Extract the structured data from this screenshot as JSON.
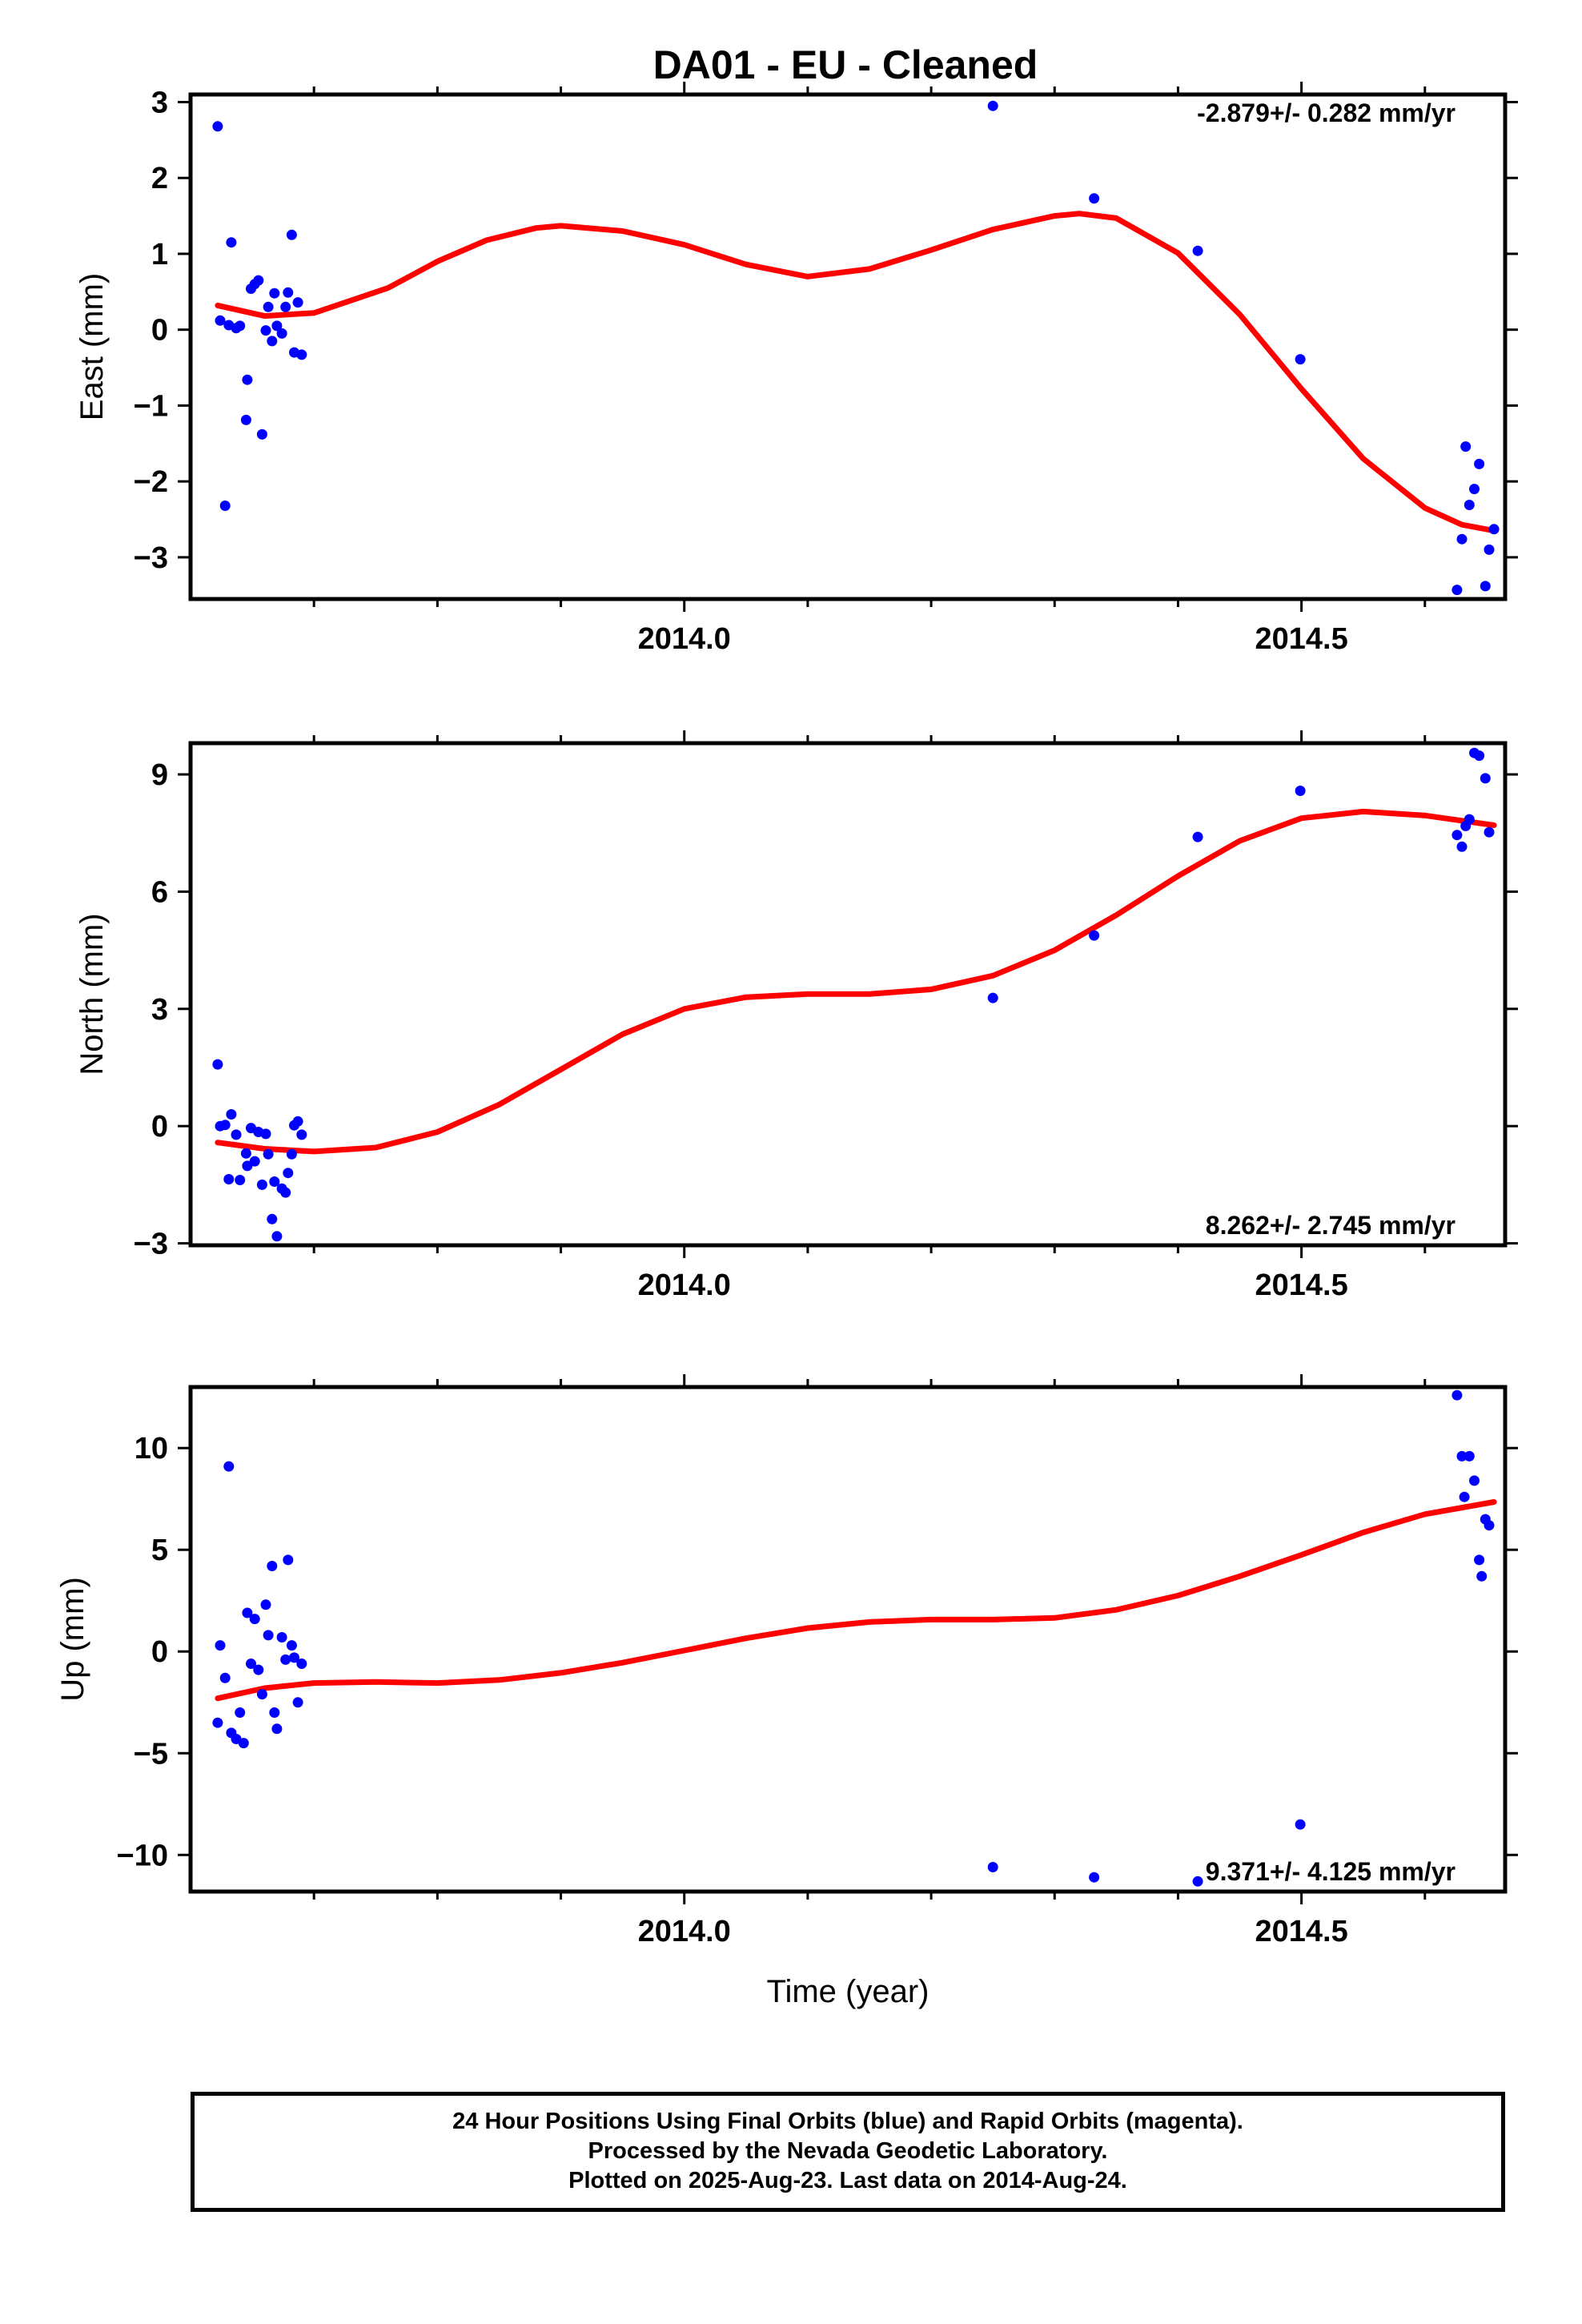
{
  "title": "DA01  - EU - Cleaned",
  "chart_data": [
    {
      "type": "scatter",
      "ylabel": "East (mm)",
      "xlabel": "",
      "xlim": [
        2013.6,
        2014.665
      ],
      "ylim": [
        -3.55,
        3.1
      ],
      "xticks": [
        2014.0,
        2014.5
      ],
      "xtick_labels": [
        "2014.0",
        "2014.5"
      ],
      "yticks": [
        -3,
        -2,
        -1,
        0,
        1,
        2,
        3
      ],
      "ytick_labels": [
        "−3",
        "−2",
        "−1",
        "0",
        "1",
        "2",
        "3"
      ],
      "rate_label": "-2.879+/- 0.282 mm/yr",
      "rate_position": "top-right",
      "series": [
        {
          "color": "#0000ff",
          "points": [
            [
              2013.622,
              2.68
            ],
            [
              2013.624,
              0.12
            ],
            [
              2013.628,
              -2.32
            ],
            [
              2013.631,
              0.06
            ],
            [
              2013.633,
              1.15
            ],
            [
              2013.637,
              0.02
            ],
            [
              2013.64,
              0.05
            ],
            [
              2013.645,
              -1.19
            ],
            [
              2013.646,
              -0.66
            ],
            [
              2013.649,
              0.54
            ],
            [
              2013.652,
              0.6
            ],
            [
              2013.655,
              0.65
            ],
            [
              2013.658,
              -1.38
            ],
            [
              2013.661,
              -0.01
            ],
            [
              2013.663,
              0.3
            ],
            [
              2013.666,
              -0.15
            ],
            [
              2013.668,
              0.48
            ],
            [
              2013.67,
              0.05
            ],
            [
              2013.674,
              -0.05
            ],
            [
              2013.677,
              0.3
            ],
            [
              2013.679,
              0.49
            ],
            [
              2013.682,
              1.25
            ],
            [
              2013.684,
              -0.3
            ],
            [
              2013.687,
              0.36
            ],
            [
              2013.69,
              -0.33
            ],
            [
              2014.25,
              2.95
            ],
            [
              2014.332,
              1.73
            ],
            [
              2014.416,
              1.04
            ],
            [
              2014.499,
              -0.39
            ],
            [
              2014.626,
              -3.43
            ],
            [
              2014.63,
              -2.76
            ],
            [
              2014.633,
              -1.54
            ],
            [
              2014.636,
              -2.31
            ],
            [
              2014.64,
              -2.1
            ],
            [
              2014.644,
              -1.77
            ],
            [
              2014.649,
              -3.38
            ],
            [
              2014.652,
              -2.9
            ],
            [
              2014.656,
              -2.63
            ]
          ]
        },
        {
          "color": "#ff0000",
          "points": [
            [
              2013.622,
              0.32
            ],
            [
              2013.66,
              0.18
            ],
            [
              2013.7,
              0.22
            ],
            [
              2013.76,
              0.55
            ],
            [
              2013.8,
              0.9
            ],
            [
              2013.84,
              1.18
            ],
            [
              2013.88,
              1.34
            ],
            [
              2013.9,
              1.37
            ],
            [
              2013.95,
              1.3
            ],
            [
              2014.0,
              1.12
            ],
            [
              2014.05,
              0.86
            ],
            [
              2014.1,
              0.7
            ],
            [
              2014.15,
              0.8
            ],
            [
              2014.2,
              1.05
            ],
            [
              2014.25,
              1.32
            ],
            [
              2014.3,
              1.5
            ],
            [
              2014.32,
              1.53
            ],
            [
              2014.35,
              1.47
            ],
            [
              2014.4,
              1.01
            ],
            [
              2014.45,
              0.2
            ],
            [
              2014.5,
              -0.78
            ],
            [
              2014.55,
              -1.7
            ],
            [
              2014.6,
              -2.35
            ],
            [
              2014.63,
              -2.57
            ],
            [
              2014.656,
              -2.65
            ]
          ]
        }
      ]
    },
    {
      "type": "scatter",
      "ylabel": "North (mm)",
      "xlabel": "",
      "xlim": [
        2013.6,
        2014.665
      ],
      "ylim": [
        -3.05,
        9.8
      ],
      "xticks": [
        2014.0,
        2014.5
      ],
      "xtick_labels": [
        "2014.0",
        "2014.5"
      ],
      "yticks": [
        -3,
        0,
        3,
        6,
        9
      ],
      "ytick_labels": [
        "−3",
        "0",
        "3",
        "6",
        "9"
      ],
      "rate_label": "8.262+/- 2.745 mm/yr",
      "rate_position": "bottom-right",
      "series": [
        {
          "color": "#0000ff",
          "points": [
            [
              2013.622,
              1.58
            ],
            [
              2013.624,
              0.0
            ],
            [
              2013.628,
              0.03
            ],
            [
              2013.631,
              -1.36
            ],
            [
              2013.633,
              0.3
            ],
            [
              2013.637,
              -0.22
            ],
            [
              2013.64,
              -1.38
            ],
            [
              2013.645,
              -0.7
            ],
            [
              2013.646,
              -1.02
            ],
            [
              2013.649,
              -0.05
            ],
            [
              2013.652,
              -0.9
            ],
            [
              2013.655,
              -0.15
            ],
            [
              2013.658,
              -1.5
            ],
            [
              2013.661,
              -0.2
            ],
            [
              2013.663,
              -0.72
            ],
            [
              2013.666,
              -2.38
            ],
            [
              2013.668,
              -1.42
            ],
            [
              2013.67,
              -2.82
            ],
            [
              2013.674,
              -1.6
            ],
            [
              2013.677,
              -1.7
            ],
            [
              2013.679,
              -1.2
            ],
            [
              2013.682,
              -0.72
            ],
            [
              2013.684,
              0.02
            ],
            [
              2013.687,
              0.12
            ],
            [
              2013.69,
              -0.22
            ],
            [
              2014.25,
              3.28
            ],
            [
              2014.332,
              4.88
            ],
            [
              2014.416,
              7.4
            ],
            [
              2014.499,
              8.58
            ],
            [
              2014.626,
              7.45
            ],
            [
              2014.63,
              7.15
            ],
            [
              2014.633,
              7.68
            ],
            [
              2014.636,
              7.85
            ],
            [
              2014.64,
              9.55
            ],
            [
              2014.644,
              9.48
            ],
            [
              2014.649,
              8.9
            ],
            [
              2014.652,
              7.52
            ]
          ]
        },
        {
          "color": "#ff0000",
          "points": [
            [
              2013.622,
              -0.42
            ],
            [
              2013.66,
              -0.58
            ],
            [
              2013.7,
              -0.65
            ],
            [
              2013.75,
              -0.55
            ],
            [
              2013.8,
              -0.15
            ],
            [
              2013.85,
              0.55
            ],
            [
              2013.9,
              1.45
            ],
            [
              2013.95,
              2.35
            ],
            [
              2014.0,
              3.0
            ],
            [
              2014.05,
              3.3
            ],
            [
              2014.1,
              3.38
            ],
            [
              2014.15,
              3.38
            ],
            [
              2014.2,
              3.5
            ],
            [
              2014.25,
              3.85
            ],
            [
              2014.3,
              4.5
            ],
            [
              2014.35,
              5.4
            ],
            [
              2014.4,
              6.4
            ],
            [
              2014.45,
              7.3
            ],
            [
              2014.5,
              7.88
            ],
            [
              2014.55,
              8.05
            ],
            [
              2014.6,
              7.95
            ],
            [
              2014.656,
              7.7
            ]
          ]
        }
      ]
    },
    {
      "type": "scatter",
      "ylabel": "Up (mm)",
      "xlabel": "Time (year)",
      "xlim": [
        2013.6,
        2014.665
      ],
      "ylim": [
        -11.8,
        13.0
      ],
      "xticks": [
        2014.0,
        2014.5
      ],
      "xtick_labels": [
        "2014.0",
        "2014.5"
      ],
      "yticks": [
        -10,
        -5,
        0,
        5,
        10
      ],
      "ytick_labels": [
        "−10",
        "−5",
        "0",
        "5",
        "10"
      ],
      "rate_label": "9.371+/- 4.125 mm/yr",
      "rate_position": "bottom-right",
      "series": [
        {
          "color": "#0000ff",
          "points": [
            [
              2013.622,
              -3.5
            ],
            [
              2013.624,
              0.3
            ],
            [
              2013.628,
              -1.3
            ],
            [
              2013.631,
              9.1
            ],
            [
              2013.633,
              -4.0
            ],
            [
              2013.637,
              -4.3
            ],
            [
              2013.64,
              -3.0
            ],
            [
              2013.643,
              -4.5
            ],
            [
              2013.646,
              1.9
            ],
            [
              2013.649,
              -0.6
            ],
            [
              2013.652,
              1.6
            ],
            [
              2013.655,
              -0.9
            ],
            [
              2013.658,
              -2.1
            ],
            [
              2013.661,
              2.3
            ],
            [
              2013.663,
              0.8
            ],
            [
              2013.666,
              4.2
            ],
            [
              2013.668,
              -3.0
            ],
            [
              2013.67,
              -3.8
            ],
            [
              2013.674,
              0.7
            ],
            [
              2013.677,
              -0.4
            ],
            [
              2013.679,
              4.5
            ],
            [
              2013.682,
              0.3
            ],
            [
              2013.684,
              -0.3
            ],
            [
              2013.687,
              -2.5
            ],
            [
              2013.69,
              -0.6
            ],
            [
              2014.25,
              -10.6
            ],
            [
              2014.332,
              -11.1
            ],
            [
              2014.416,
              -11.3
            ],
            [
              2014.499,
              -8.5
            ],
            [
              2014.626,
              12.6
            ],
            [
              2014.63,
              9.6
            ],
            [
              2014.632,
              7.6
            ],
            [
              2014.636,
              9.6
            ],
            [
              2014.64,
              8.4
            ],
            [
              2014.644,
              4.5
            ],
            [
              2014.646,
              3.7
            ],
            [
              2014.649,
              6.5
            ],
            [
              2014.652,
              6.2
            ]
          ]
        },
        {
          "color": "#ff0000",
          "points": [
            [
              2013.622,
              -2.3
            ],
            [
              2013.66,
              -1.8
            ],
            [
              2013.7,
              -1.55
            ],
            [
              2013.75,
              -1.5
            ],
            [
              2013.8,
              -1.55
            ],
            [
              2013.85,
              -1.4
            ],
            [
              2013.9,
              -1.05
            ],
            [
              2013.95,
              -0.55
            ],
            [
              2014.0,
              0.05
            ],
            [
              2014.05,
              0.65
            ],
            [
              2014.1,
              1.15
            ],
            [
              2014.15,
              1.45
            ],
            [
              2014.2,
              1.57
            ],
            [
              2014.25,
              1.57
            ],
            [
              2014.3,
              1.65
            ],
            [
              2014.35,
              2.05
            ],
            [
              2014.4,
              2.75
            ],
            [
              2014.45,
              3.7
            ],
            [
              2014.5,
              4.75
            ],
            [
              2014.55,
              5.85
            ],
            [
              2014.6,
              6.75
            ],
            [
              2014.656,
              7.35
            ]
          ]
        }
      ]
    }
  ],
  "footer": {
    "line1": "24 Hour Positions Using Final Orbits (blue) and Rapid Orbits (magenta).",
    "line2": "Processed by the Nevada Geodetic Laboratory.",
    "line3": "Plotted on 2025-Aug-23. Last data on 2014-Aug-24."
  }
}
